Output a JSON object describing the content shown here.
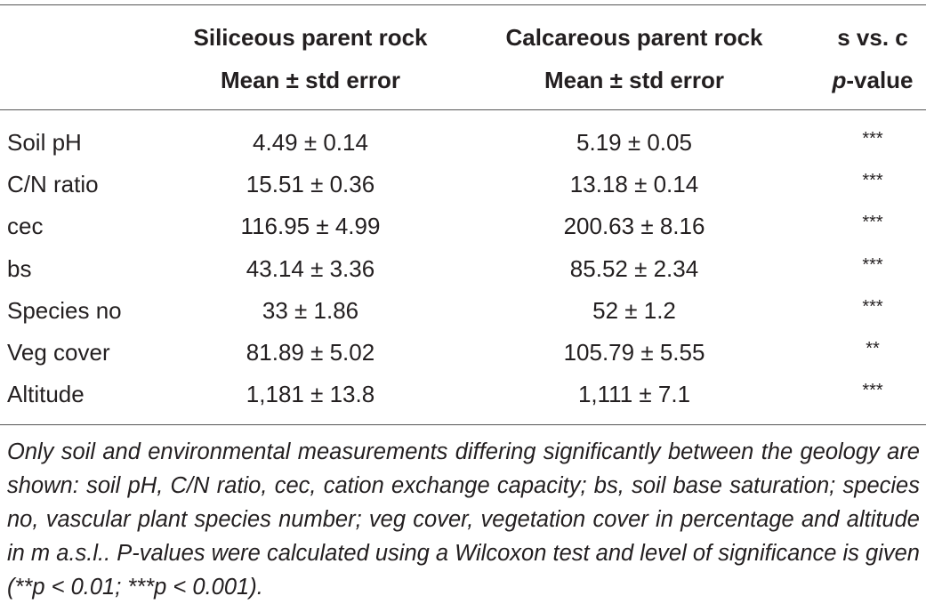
{
  "table": {
    "header": [
      [
        "Siliceous parent rock",
        "Calcareous parent rock",
        "s vs. c"
      ],
      [
        "Mean ± std error",
        "Mean ± std error",
        [
          "p",
          "-value"
        ]
      ]
    ],
    "rows": [
      [
        "Soil pH",
        "4.49 ± 0.14",
        "5.19 ± 0.05",
        "***"
      ],
      [
        "C/N ratio",
        "15.51 ± 0.36",
        "13.18 ± 0.14",
        "***"
      ],
      [
        "cec",
        "116.95 ± 4.99",
        "200.63 ± 8.16",
        "***"
      ],
      [
        "bs",
        "43.14 ± 3.36",
        "85.52 ± 2.34",
        "***"
      ],
      [
        "Species no",
        "33 ± 1.86",
        "52 ± 1.2",
        "***"
      ],
      [
        "Veg cover",
        "81.89 ± 5.02",
        "105.79 ± 5.55",
        "**"
      ],
      [
        "Altitude",
        "1,181 ± 13.8",
        "1,111 ± 7.1",
        "***"
      ]
    ],
    "footnote": "Only soil and environmental measurements differing significantly between the geology are shown: soil pH, C/N ratio, cec, cation exchange capacity; bs, soil base saturation; species no, vascular plant species number; veg cover, vegetation cover in percentage and altitude in m a.s.l.. P-values were calculated using a Wilcoxon test and level of significance is given (**p < 0.01; ***p < 0.001)."
  }
}
